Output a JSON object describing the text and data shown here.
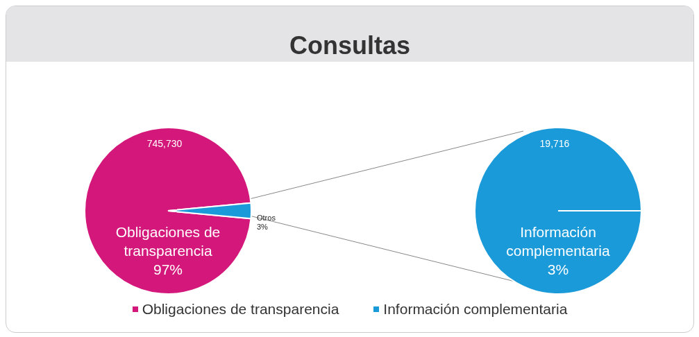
{
  "chart_data": [
    {
      "type": "pie",
      "title": "Consultas",
      "categories": [
        "Obligaciones de transparencia",
        "Otros"
      ],
      "values": [
        97,
        3
      ],
      "colors": [
        "#d4177a",
        "#1a9ad8"
      ],
      "value_labels": [
        "97%",
        "3%"
      ],
      "annotations": [
        "745,730"
      ],
      "legend": "bottom"
    },
    {
      "type": "pie",
      "categories": [
        "Información complementaria"
      ],
      "values": [
        3
      ],
      "colors": [
        "#1a9ad8"
      ],
      "value_labels": [
        "3%"
      ],
      "annotations": [
        "19,716"
      ],
      "legend": "bottom"
    }
  ]
}
